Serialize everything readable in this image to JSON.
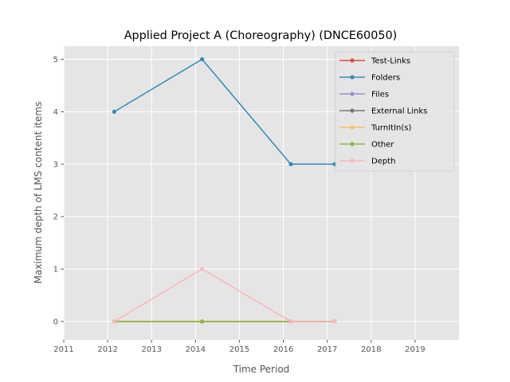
{
  "chart_data": {
    "type": "line",
    "title": "Applied Project A (Choreography) (DNCE60050)",
    "xlabel": "Time Period",
    "ylabel": "Maximum depth of LMS content items",
    "xlim": [
      2011,
      2020
    ],
    "ylim": [
      -0.35,
      5.25
    ],
    "xticks": [
      "2011",
      "2012",
      "2013",
      "2014",
      "2015",
      "2016",
      "2017",
      "2018",
      "2019"
    ],
    "yticks": [
      "0",
      "1",
      "2",
      "3",
      "4",
      "5"
    ],
    "grid": true,
    "legend_position": "top-right",
    "x": [
      2012.15,
      2014.15,
      2016.17,
      2017.17
    ],
    "series": [
      {
        "name": "Test-Links",
        "color": "#E24A33",
        "values": [
          0,
          0,
          0,
          0
        ]
      },
      {
        "name": "Folders",
        "color": "#348ABD",
        "values": [
          4,
          5,
          3,
          3
        ]
      },
      {
        "name": "Files",
        "color": "#988ED5",
        "values": [
          0,
          0,
          0,
          0
        ]
      },
      {
        "name": "External Links",
        "color": "#777777",
        "values": [
          0,
          0,
          0,
          0
        ]
      },
      {
        "name": "TurnItIn(s)",
        "color": "#FBC15E",
        "values": [
          0,
          0,
          0,
          0
        ]
      },
      {
        "name": "Other",
        "color": "#8EBA42",
        "values": [
          0,
          0,
          0,
          0
        ]
      },
      {
        "name": "Depth",
        "color": "#FFB5B8",
        "values": [
          0,
          1,
          0,
          0
        ]
      }
    ]
  }
}
